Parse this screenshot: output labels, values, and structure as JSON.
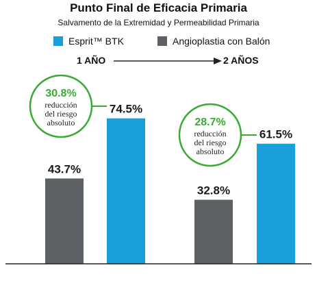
{
  "colors": {
    "esprit": "#1a9fdb",
    "balloon": "#5d6065",
    "accent_green": "#3aaa35",
    "axis": "#222222"
  },
  "chart_data": {
    "type": "bar",
    "title": "Punto Final de Eficacia Primaria",
    "subtitle": "Salvamento de la Extremidad y Permeabilidad Primaria",
    "categories": [
      "1 AÑO",
      "2 AÑOS"
    ],
    "series": [
      {
        "name": "Angioplastia con Balón",
        "values": [
          43.7,
          32.8
        ],
        "labels": [
          "43.7%",
          "32.8%"
        ]
      },
      {
        "name": "Esprit™ BTK",
        "values": [
          74.5,
          61.5
        ],
        "labels": [
          "74.5%",
          "61.5%"
        ]
      }
    ],
    "ylim": [
      0,
      100
    ],
    "grid": false,
    "legend_position": "top",
    "annotations": [
      {
        "period": "1 AÑO",
        "value": "30.8%",
        "lines": [
          "reducción",
          "del riesgo",
          "absoluto"
        ]
      },
      {
        "period": "2 AÑOS",
        "value": "28.7%",
        "lines": [
          "reducción",
          "del riesgo",
          "absoluto"
        ]
      }
    ]
  },
  "legend": {
    "esprit_label": "Esprit™ BTK",
    "balloon_label": "Angioplastia con Balón"
  },
  "periods": {
    "start": "1 AÑO",
    "end": "2 AÑOS"
  }
}
